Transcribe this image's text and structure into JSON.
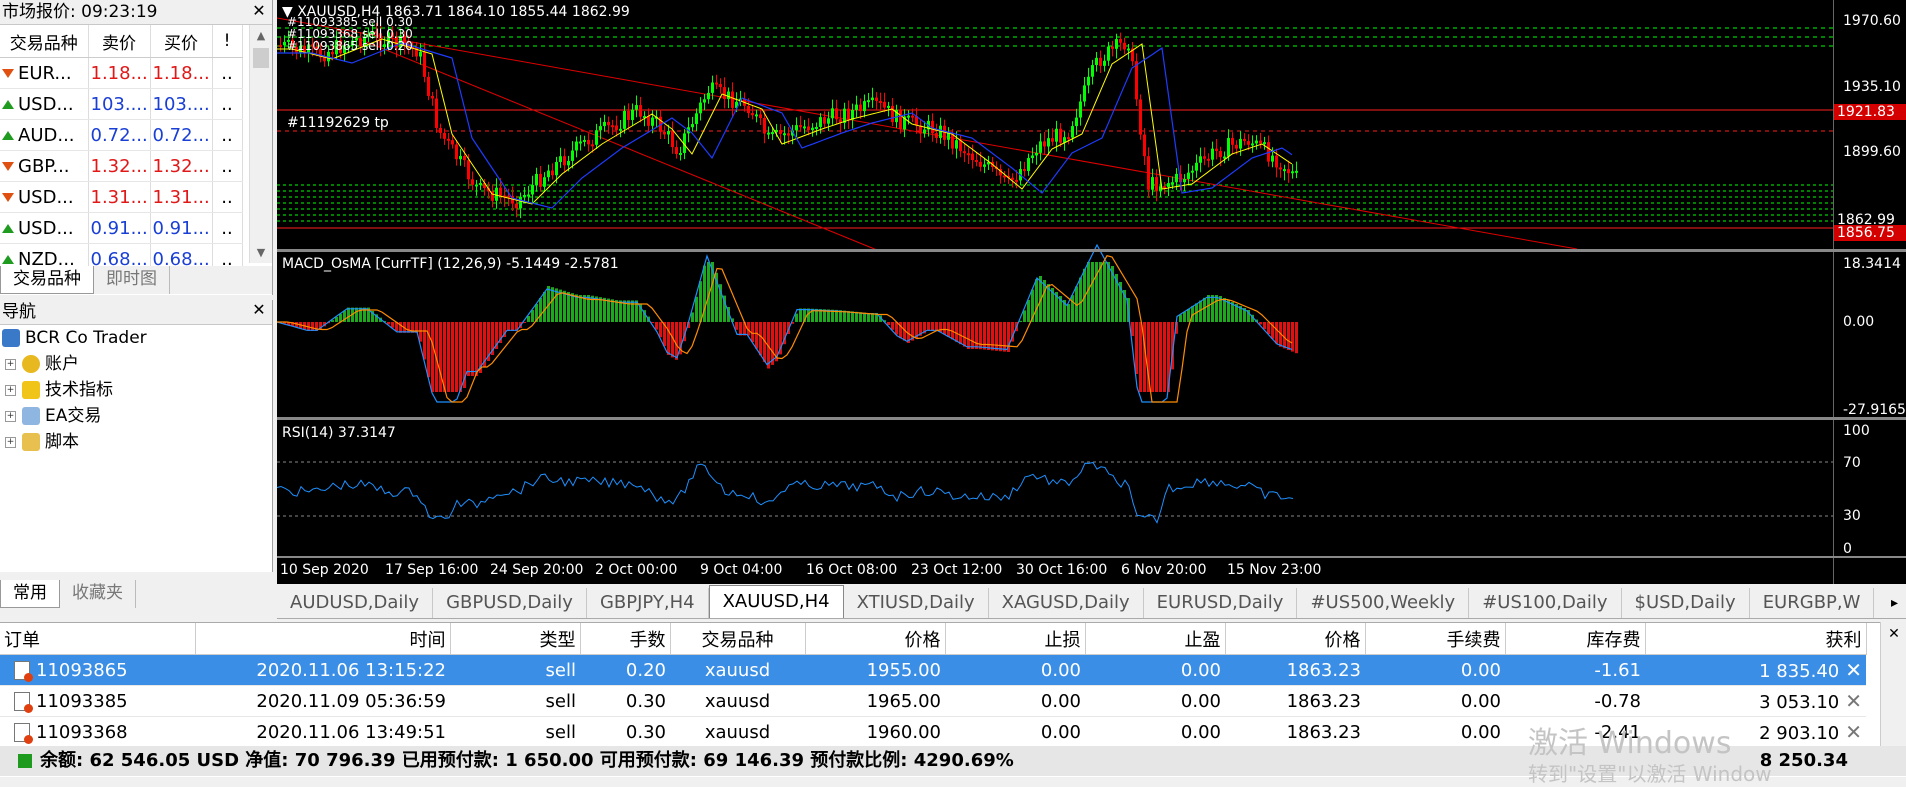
{
  "market_watch": {
    "title": "市场报价: 09:23:19",
    "columns": [
      "交易品种",
      "卖价",
      "买价",
      "!"
    ],
    "rows": [
      {
        "symbol": "EUR...",
        "bid": "1.18...",
        "ask": "1.18...",
        "dir": "down",
        "flag": ".."
      },
      {
        "symbol": "USD...",
        "bid": "103....",
        "ask": "103....",
        "dir": "up",
        "flag": ".."
      },
      {
        "symbol": "AUD...",
        "bid": "0.72...",
        "ask": "0.72...",
        "dir": "up",
        "flag": ".."
      },
      {
        "symbol": "GBP...",
        "bid": "1.32...",
        "ask": "1.32...",
        "dir": "down",
        "flag": ".."
      },
      {
        "symbol": "USD...",
        "bid": "1.31...",
        "ask": "1.31...",
        "dir": "down",
        "flag": ".."
      },
      {
        "symbol": "USD...",
        "bid": "0.91...",
        "ask": "0.91...",
        "dir": "up",
        "flag": ".."
      },
      {
        "symbol": "NZD...",
        "bid": "0.68...",
        "ask": "0.68...",
        "dir": "up",
        "flag": ".."
      }
    ],
    "tabs": [
      "交易品种",
      "即时图"
    ]
  },
  "navigator": {
    "title": "导航",
    "root": "BCR Co Trader",
    "items": [
      "账户",
      "技术指标",
      "EA交易",
      "脚本"
    ],
    "tabs": [
      "常用",
      "收藏夹"
    ]
  },
  "chart": {
    "header": "XAUUSD,H4  1863.71 1864.10 1855.44 1862.99",
    "order_labels": [
      "#11093385 sell 0.30",
      "#11093368 sell 0.30",
      "#11093865 sell 0.20"
    ],
    "tp_label": "#11192629 tp",
    "price_axis": [
      "1970.60",
      "1935.10",
      "1899.60",
      "1862.99"
    ],
    "tp_price": "1921.83",
    "sl_price": "1856.75",
    "macd_title": "MACD_OsMA [CurrTF] (12,26,9) -5.1449 -2.5781",
    "macd_axis": [
      "18.3414",
      "0.00",
      "-27.9165"
    ],
    "rsi_title": "RSI(14) 37.3147",
    "rsi_axis": [
      "100",
      "70",
      "30",
      "0"
    ],
    "time_axis": [
      "10 Sep 2020",
      "17 Sep 16:00",
      "24 Sep 20:00",
      "2 Oct 00:00",
      "9 Oct 04:00",
      "16 Oct 08:00",
      "23 Oct 12:00",
      "30 Oct 16:00",
      "6 Nov 20:00",
      "15 Nov 23:00"
    ],
    "colors": {
      "bull": "#00ff00",
      "bear": "#ff0000",
      "ma_fast": "#ffff00",
      "ma_slow": "#1e3cff",
      "grid": "#c0c0c0",
      "macd_line": "#1e90ff",
      "signal_line": "#ff8c00",
      "rsi": "#1e90ff"
    }
  },
  "chart_tabs": {
    "items": [
      "AUDUSD,Daily",
      "GBPUSD,Daily",
      "GBPJPY,H4",
      "XAUUSD,H4",
      "XTIUSD,Daily",
      "XAGUSD,Daily",
      "EURUSD,Daily",
      "#US500,Weekly",
      "#US100,Daily",
      "$USD,Daily",
      "EURGBP,W"
    ],
    "active": 3
  },
  "terminal": {
    "columns": [
      "订单",
      "时间",
      "类型",
      "手数",
      "交易品种",
      "价格",
      "止损",
      "止盈",
      "价格",
      "手续费",
      "库存费",
      "获利"
    ],
    "rows": [
      {
        "order": "11093865",
        "time": "2020.11.06 13:15:22",
        "type": "sell",
        "lots": "0.20",
        "symbol": "xauusd",
        "open": "1955.00",
        "sl": "0.00",
        "tp": "0.00",
        "price": "1863.23",
        "commission": "0.00",
        "swap": "-1.61",
        "profit": "1 835.40",
        "selected": true
      },
      {
        "order": "11093385",
        "time": "2020.11.09 05:36:59",
        "type": "sell",
        "lots": "0.30",
        "symbol": "xauusd",
        "open": "1965.00",
        "sl": "0.00",
        "tp": "0.00",
        "price": "1863.23",
        "commission": "0.00",
        "swap": "-0.78",
        "profit": "3 053.10",
        "selected": false
      },
      {
        "order": "11093368",
        "time": "2020.11.06 13:49:51",
        "type": "sell",
        "lots": "0.30",
        "symbol": "xauusd",
        "open": "1960.00",
        "sl": "0.00",
        "tp": "0.00",
        "price": "1863.23",
        "commission": "0.00",
        "swap": "-2.41",
        "profit": "2 903.10",
        "selected": false
      }
    ],
    "status": "余额: 62 546.05 USD  净值: 70 796.39  已用预付款: 1 650.00  可用预付款: 69 146.39  预付款比例: 4290.69%",
    "total_profit": "8 250.34",
    "watermark_1": "激活 Windows",
    "watermark_2": "转到\"设置\"以激活 Window"
  }
}
